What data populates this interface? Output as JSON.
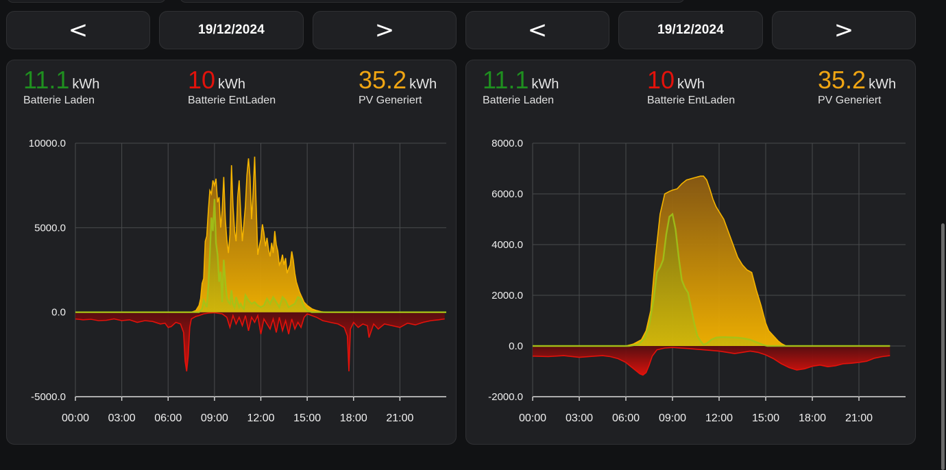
{
  "colors": {
    "green": "#1f8f1f",
    "red": "#e3120b",
    "orange": "#f0a513",
    "pv_line": "#f5b400",
    "charge_line": "#9fc51a",
    "discharge_line": "#e3120b"
  },
  "panels": [
    {
      "nav": {
        "prev_label": "<",
        "date": "19/12/2024",
        "next_label": ">"
      },
      "stats": [
        {
          "value": "11.1",
          "unit": "kWh",
          "label": "Batterie Laden"
        },
        {
          "value": "10",
          "unit": "kWh",
          "label": "Batterie EntLaden"
        },
        {
          "value": "35.2",
          "unit": "kWh",
          "label": "PV Generiert"
        }
      ],
      "chart": {
        "y_ticks": [
          "10000.0",
          "5000.0",
          "0.0",
          "-5000.0"
        ],
        "x_ticks": [
          "00:00",
          "03:00",
          "06:00",
          "09:00",
          "12:00",
          "15:00",
          "18:00",
          "21:00"
        ]
      }
    },
    {
      "nav": {
        "prev_label": "<",
        "date": "19/12/2024",
        "next_label": ">"
      },
      "stats": [
        {
          "value": "11.1",
          "unit": "kWh",
          "label": "Batterie Laden"
        },
        {
          "value": "10",
          "unit": "kWh",
          "label": "Batterie EntLaden"
        },
        {
          "value": "35.2",
          "unit": "kWh",
          "label": "PV Generiert"
        }
      ],
      "chart": {
        "y_ticks": [
          "8000.0",
          "6000.0",
          "4000.0",
          "2000.0",
          "0.0",
          "-2000.0"
        ],
        "x_ticks": [
          "00:00",
          "03:00",
          "06:00",
          "09:00",
          "12:00",
          "15:00",
          "18:00",
          "21:00"
        ]
      }
    }
  ],
  "chart_data": [
    {
      "type": "area",
      "ylim": [
        -5000,
        10000
      ],
      "xlim_hours": [
        0,
        24
      ],
      "grid": true,
      "series": [
        {
          "key": "pv",
          "x": [
            0,
            7.5,
            7.8,
            8.0,
            8.1,
            8.2,
            8.3,
            8.4,
            8.5,
            8.6,
            8.7,
            8.8,
            8.9,
            9.0,
            9.1,
            9.2,
            9.3,
            9.4,
            9.5,
            9.6,
            9.7,
            9.8,
            9.9,
            10.0,
            10.1,
            10.2,
            10.3,
            10.4,
            10.5,
            10.6,
            10.7,
            10.8,
            10.9,
            11.0,
            11.1,
            11.2,
            11.3,
            11.4,
            11.5,
            11.6,
            11.7,
            11.8,
            11.9,
            12.0,
            12.1,
            12.2,
            12.3,
            12.4,
            12.5,
            12.6,
            12.7,
            12.8,
            12.9,
            13.0,
            13.1,
            13.2,
            13.3,
            13.4,
            13.5,
            13.6,
            13.7,
            13.8,
            13.9,
            14.0,
            14.1,
            14.2,
            14.3,
            14.4,
            14.5,
            14.6,
            14.7,
            14.8,
            15.0,
            15.3,
            15.6,
            15.9,
            16.2,
            16.5,
            24
          ],
          "values": [
            0,
            0,
            100,
            400,
            800,
            1700,
            2000,
            4200,
            4500,
            6000,
            7200,
            7000,
            7800,
            7500,
            7900,
            6500,
            6800,
            5000,
            6000,
            8000,
            5500,
            4300,
            3500,
            4600,
            8700,
            6300,
            4800,
            4200,
            6800,
            7800,
            5800,
            4200,
            5200,
            6300,
            8100,
            9100,
            8000,
            5500,
            7000,
            9200,
            6300,
            3400,
            3900,
            4300,
            5200,
            4700,
            3900,
            4400,
            3700,
            3300,
            4100,
            3500,
            4800,
            4000,
            3600,
            2800,
            3000,
            3400,
            2800,
            3200,
            2300,
            2600,
            2800,
            3600,
            3100,
            2300,
            1800,
            1500,
            1200,
            1000,
            800,
            600,
            400,
            200,
            100,
            30,
            0,
            0,
            0
          ]
        },
        {
          "key": "charge",
          "x": [
            0,
            8.0,
            8.2,
            8.3,
            8.4,
            8.5,
            8.6,
            8.7,
            8.8,
            8.9,
            9.0,
            9.1,
            9.2,
            9.3,
            9.4,
            9.5,
            9.6,
            9.7,
            9.8,
            9.9,
            10.0,
            10.1,
            10.2,
            10.3,
            10.4,
            10.5,
            10.6,
            10.7,
            10.8,
            10.9,
            11.0,
            11.2,
            11.4,
            11.6,
            11.8,
            12.0,
            12.2,
            12.4,
            12.6,
            12.8,
            13.0,
            13.2,
            13.4,
            13.6,
            13.8,
            14.0,
            14.2,
            14.4,
            14.6,
            14.8,
            15.0,
            15.3,
            24
          ],
          "values": [
            0,
            0,
            200,
            700,
            500,
            300,
            1500,
            3400,
            5600,
            4800,
            6700,
            4100,
            3400,
            1800,
            2400,
            600,
            3100,
            1800,
            900,
            600,
            500,
            1300,
            500,
            300,
            900,
            600,
            300,
            500,
            300,
            200,
            1000,
            700,
            500,
            600,
            400,
            300,
            400,
            800,
            500,
            900,
            600,
            300,
            900,
            700,
            300,
            400,
            500,
            900,
            800,
            300,
            100,
            0,
            0
          ]
        },
        {
          "key": "discharge",
          "x": [
            0,
            0.5,
            1,
            1.5,
            2,
            2.5,
            3,
            3.5,
            4,
            4.5,
            5,
            5.5,
            5.8,
            6.0,
            6.2,
            6.5,
            6.8,
            7.0,
            7.1,
            7.2,
            7.3,
            7.4,
            7.5,
            7.8,
            8.0,
            8.3,
            8.6,
            9.0,
            9.5,
            9.8,
            10.0,
            10.2,
            10.4,
            10.6,
            10.8,
            11.0,
            11.2,
            11.4,
            11.6,
            11.8,
            12.0,
            12.2,
            12.4,
            12.6,
            12.8,
            13.0,
            13.2,
            13.4,
            13.6,
            13.8,
            14.0,
            14.2,
            14.4,
            14.6,
            14.8,
            15.0,
            15.3,
            15.6,
            16.0,
            16.5,
            17.0,
            17.4,
            17.6,
            17.7,
            17.8,
            17.9,
            18.0,
            18.3,
            18.6,
            18.9,
            19.0,
            19.3,
            19.6,
            20.0,
            20.5,
            21.0,
            21.5,
            22.0,
            22.5,
            23.0,
            23.5,
            23.9
          ],
          "values": [
            -400,
            -450,
            -420,
            -500,
            -480,
            -400,
            -500,
            -450,
            -600,
            -500,
            -550,
            -700,
            -650,
            -900,
            -850,
            -600,
            -700,
            -1200,
            -2900,
            -3500,
            -2600,
            -900,
            -400,
            -250,
            -200,
            -100,
            -50,
            -30,
            -100,
            -300,
            -900,
            -200,
            -700,
            -300,
            -800,
            -200,
            -1100,
            -300,
            -600,
            -200,
            -1300,
            -400,
            -700,
            -1000,
            -400,
            -1200,
            -300,
            -1100,
            -500,
            -1300,
            -400,
            -1000,
            -600,
            -900,
            -300,
            -100,
            -200,
            -300,
            -500,
            -600,
            -700,
            -900,
            -1400,
            -3500,
            -1000,
            -800,
            -600,
            -900,
            -700,
            -800,
            -1500,
            -700,
            -1000,
            -700,
            -800,
            -900,
            -650,
            -750,
            -600,
            -500,
            -450,
            -400
          ]
        }
      ]
    },
    {
      "type": "area",
      "ylim": [
        -2000,
        8000
      ],
      "xlim_hours": [
        0,
        24
      ],
      "grid": true,
      "series": [
        {
          "key": "pv",
          "x": [
            0,
            6.0,
            6.5,
            7.0,
            7.3,
            7.6,
            7.9,
            8.2,
            8.5,
            8.8,
            9.0,
            9.3,
            9.6,
            9.9,
            10.2,
            10.5,
            10.8,
            11.0,
            11.2,
            11.4,
            11.6,
            11.8,
            12.0,
            12.3,
            12.6,
            12.9,
            13.2,
            13.5,
            13.8,
            14.1,
            14.4,
            14.7,
            15.0,
            15.2,
            15.5,
            15.8,
            16.0,
            16.3,
            23.0
          ],
          "values": [
            0,
            0,
            80,
            250,
            600,
            1400,
            3500,
            5200,
            6000,
            6100,
            6150,
            6200,
            6400,
            6550,
            6600,
            6650,
            6700,
            6700,
            6550,
            6200,
            5800,
            5500,
            5300,
            5000,
            4500,
            4000,
            3500,
            3200,
            3000,
            2900,
            2200,
            1600,
            900,
            600,
            400,
            200,
            100,
            0,
            0
          ]
        },
        {
          "key": "charge",
          "x": [
            0,
            6.2,
            6.8,
            7.2,
            7.5,
            7.8,
            8.0,
            8.2,
            8.4,
            8.6,
            8.8,
            9.0,
            9.2,
            9.4,
            9.6,
            9.8,
            10.0,
            10.2,
            10.4,
            10.6,
            10.8,
            11.0,
            11.2,
            11.5,
            11.8,
            12.1,
            12.4,
            12.8,
            13.2,
            13.6,
            14.0,
            14.4,
            14.8,
            15.1,
            23.0
          ],
          "values": [
            0,
            0,
            60,
            300,
            800,
            1900,
            2900,
            3100,
            3400,
            4400,
            5100,
            5200,
            4600,
            3500,
            2600,
            2300,
            2100,
            1500,
            900,
            400,
            200,
            50,
            100,
            250,
            330,
            350,
            350,
            340,
            330,
            300,
            250,
            150,
            50,
            0,
            0
          ]
        },
        {
          "key": "discharge",
          "x": [
            0,
            1,
            2,
            3,
            4,
            4.5,
            5,
            5.5,
            6,
            6.3,
            6.6,
            6.9,
            7.1,
            7.3,
            7.5,
            7.7,
            8.0,
            8.5,
            9,
            10,
            11,
            12,
            13,
            13.5,
            14,
            14.5,
            15,
            15.5,
            16,
            16.5,
            17,
            17.5,
            18,
            18.5,
            19,
            19.5,
            20,
            20.5,
            21,
            21.5,
            22,
            22.5,
            23
          ],
          "values": [
            -400,
            -420,
            -380,
            -450,
            -400,
            -380,
            -420,
            -500,
            -650,
            -800,
            -950,
            -1100,
            -1150,
            -1050,
            -750,
            -400,
            -150,
            -80,
            -60,
            -100,
            -150,
            -200,
            -300,
            -250,
            -200,
            -250,
            -350,
            -500,
            -700,
            -850,
            -950,
            -900,
            -800,
            -750,
            -820,
            -780,
            -700,
            -680,
            -650,
            -600,
            -480,
            -420,
            -380
          ]
        }
      ]
    }
  ]
}
